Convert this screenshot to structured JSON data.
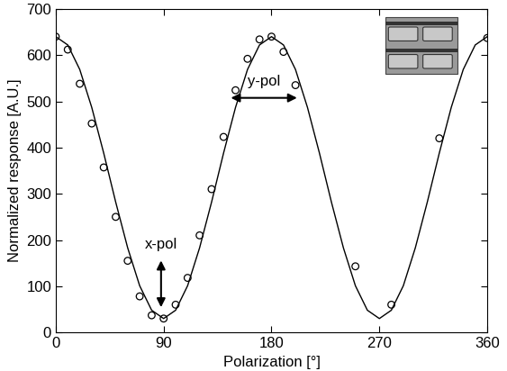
{
  "chart_data": {
    "type": "scatter",
    "x_label": "Polarization [°]",
    "y_label": "Normalized response [A.U.]",
    "annotations": [
      "x-pol",
      "y-pol"
    ],
    "series": [
      {
        "type": "scatter",
        "marker": "circle",
        "color": "#000000",
        "x": [
          0,
          10,
          20,
          30,
          40,
          50,
          60,
          70,
          80,
          90,
          100,
          110,
          120,
          130,
          140,
          150,
          160,
          170,
          180,
          190,
          200,
          250,
          280,
          320,
          360
        ],
        "values": [
          640,
          612,
          538,
          452,
          357,
          250,
          155,
          78,
          37,
          30,
          60,
          118,
          210,
          310,
          423,
          524,
          592,
          634,
          640,
          607,
          535,
          143,
          60,
          420,
          637
        ]
      },
      {
        "type": "line",
        "line_style": "solid",
        "color": "#000000",
        "x": [
          0,
          10,
          20,
          30,
          40,
          50,
          60,
          70,
          80,
          90,
          100,
          110,
          120,
          130,
          140,
          150,
          160,
          170,
          180,
          190,
          200,
          210,
          220,
          230,
          240,
          250,
          260,
          270,
          280,
          290,
          300,
          310,
          320,
          330,
          340,
          350,
          360
        ],
        "values": [
          640,
          622,
          569,
          487,
          388,
          282,
          183,
          101,
          48,
          30,
          48,
          101,
          183,
          282,
          388,
          487,
          569,
          622,
          640,
          622,
          569,
          487,
          388,
          282,
          183,
          101,
          48,
          30,
          48,
          101,
          183,
          282,
          388,
          487,
          569,
          622,
          640
        ]
      }
    ],
    "xlim": [
      0,
      360
    ],
    "xticks": [
      0,
      90,
      180,
      270,
      360
    ],
    "ylim": [
      0,
      700
    ],
    "yticks": [
      0,
      100,
      200,
      300,
      400,
      500,
      600,
      700
    ],
    "grid": false
  }
}
